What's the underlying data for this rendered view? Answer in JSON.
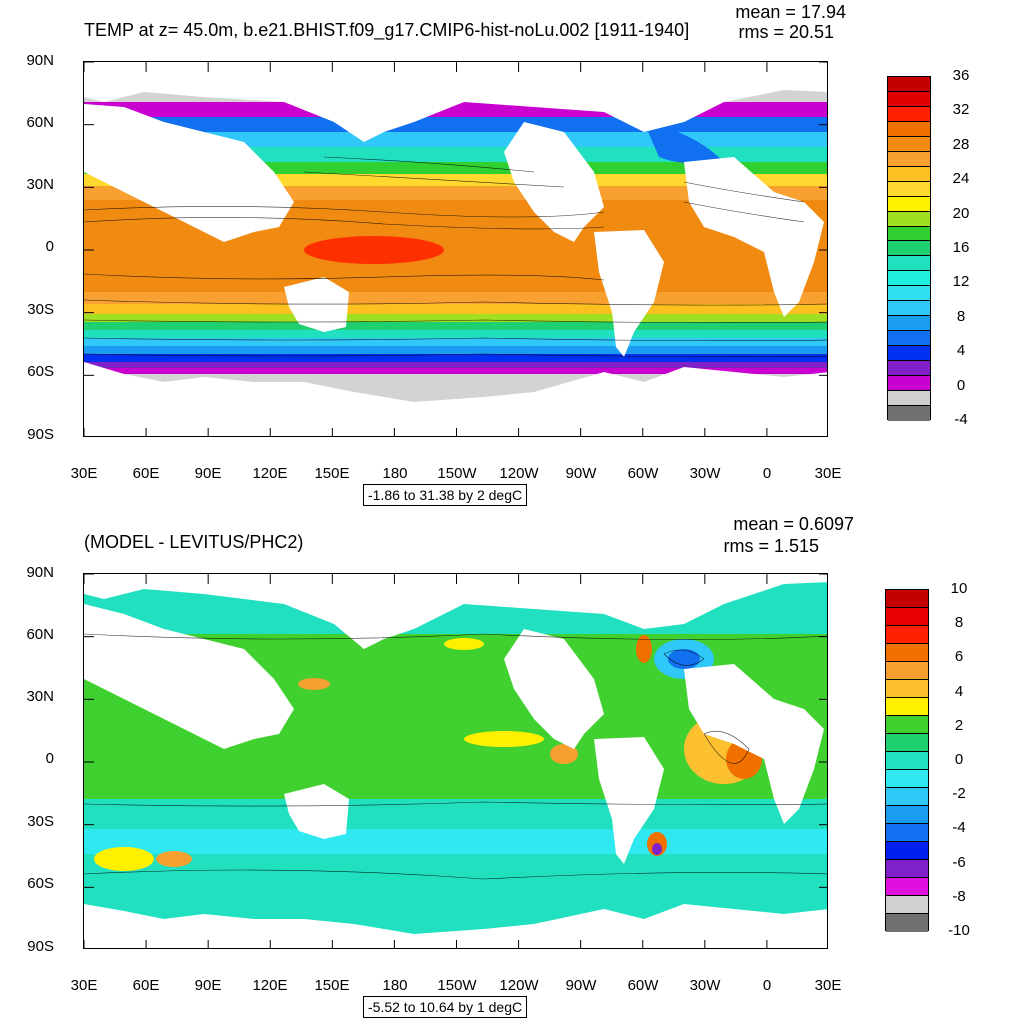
{
  "top": {
    "title": "TEMP at z=  45.0m, b.e21.BHIST.f09_g17.CMIP6-hist-noLu.002 [1911-1940]",
    "mean": "mean = 17.94",
    "rms": "rms = 20.51",
    "range": "-1.86 to 31.38 by 2 degC",
    "colorbar": {
      "labels": [
        "36",
        "32",
        "28",
        "24",
        "20",
        "16",
        "12",
        "8",
        "4",
        "0",
        "-4"
      ],
      "colors": [
        "#c40000",
        "#e00000",
        "#ff2000",
        "#f07000",
        "#f58a10",
        "#f8a030",
        "#fcc020",
        "#ffd830",
        "#fff000",
        "#a0e020",
        "#30d030",
        "#20d070",
        "#20e0c0",
        "#20f0e0",
        "#30e0f0",
        "#30c8f8",
        "#1a9cf0",
        "#1070f0",
        "#0030f0",
        "#8020c8",
        "#c800d0",
        "#d0d0d0",
        "#707070"
      ]
    }
  },
  "bottom": {
    "title": "(MODEL - LEVITUS/PHC2)",
    "mean": "mean = 0.6097",
    "rms": "rms = 1.515",
    "range": "-5.52 to 10.64 by 1 degC",
    "colorbar": {
      "labels": [
        "10",
        "8",
        "6",
        "4",
        "2",
        "0",
        "-2",
        "-4",
        "-6",
        "-8",
        "-10"
      ],
      "colors": [
        "#c40000",
        "#e80000",
        "#ff2000",
        "#f07000",
        "#f5a030",
        "#fcc030",
        "#fff000",
        "#40d030",
        "#20d070",
        "#20e0c0",
        "#30e8f0",
        "#30c8f8",
        "#1a9cf0",
        "#1070f0",
        "#0020f0",
        "#8020c8",
        "#e010e0",
        "#d0d0d0",
        "#707070"
      ]
    }
  },
  "axes": {
    "lat_labels": [
      "90N",
      "60N",
      "30N",
      "0",
      "30S",
      "60S",
      "90S"
    ],
    "lon_labels": [
      "30E",
      "60E",
      "90E",
      "120E",
      "150E",
      "180",
      "150W",
      "120W",
      "90W",
      "60W",
      "30W",
      "0",
      "30E"
    ]
  }
}
